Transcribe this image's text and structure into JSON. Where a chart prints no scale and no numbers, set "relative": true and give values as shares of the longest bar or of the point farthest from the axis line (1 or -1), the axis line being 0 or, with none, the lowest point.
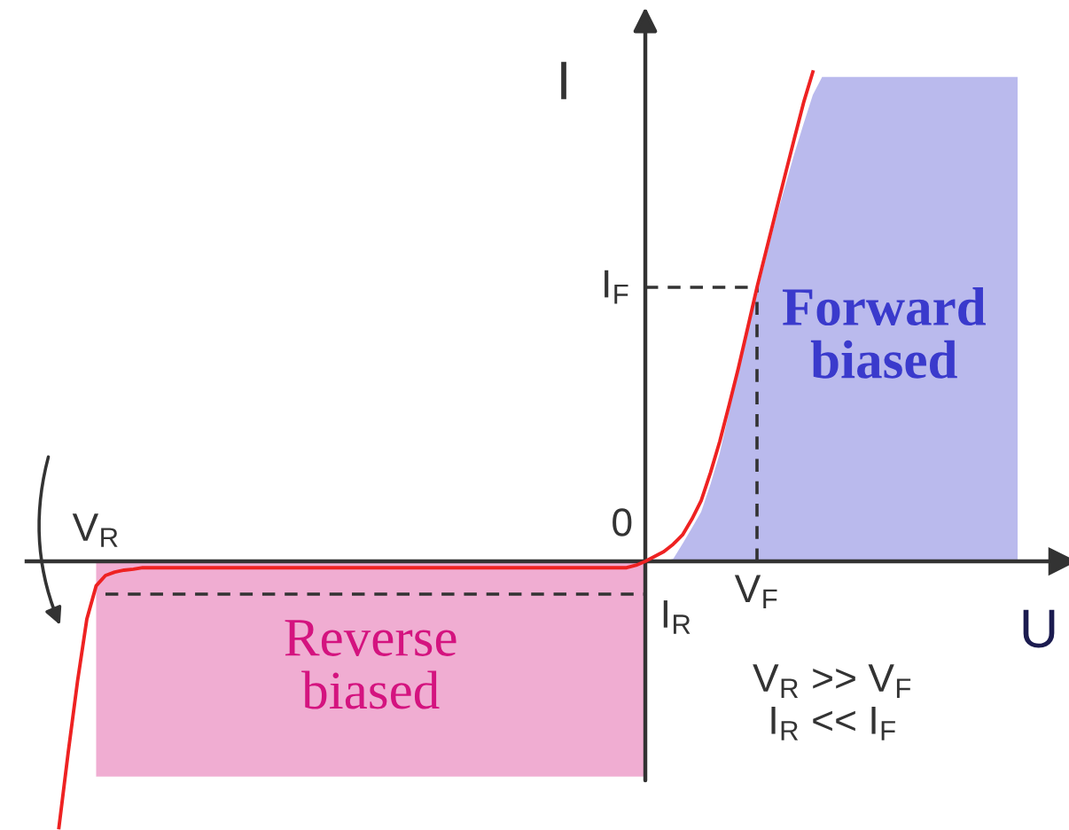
{
  "chart_data": {
    "type": "line",
    "relative": true,
    "xlabel": "U",
    "ylabel": "I",
    "categories": [
      null,
      null,
      null,
      null,
      "V$_{R}$",
      null,
      null,
      null,
      null,
      null,
      null,
      null,
      null,
      null,
      null,
      null,
      null,
      null,
      null,
      null,
      null,
      null,
      null,
      null,
      null,
      null,
      null,
      null,
      null,
      null,
      null,
      null,
      null,
      null,
      null,
      null,
      null,
      null,
      null,
      null,
      null,
      null,
      null,
      null,
      null,
      null,
      null,
      null,
      null,
      null,
      null,
      null,
      null,
      null,
      null,
      null,
      null,
      null,
      null,
      null,
      null,
      null,
      null,
      null,
      null,
      null,
      null,
      null,
      null,
      null,
      null,
      null,
      null,
      null,
      null,
      "V$_{F}$",
      null,
      null,
      null,
      null,
      null,
      null,
      null,
      null,
      null,
      null,
      null,
      null,
      null,
      null,
      null,
      null,
      null,
      null,
      null,
      null,
      null,
      null,
      null,
      null,
      null,
      null,
      null,
      null
    ],
    "series": [
      {
        "color": "#ee2222",
        "values": [
          -0.544,
          -0.39,
          -0.245,
          -0.118,
          -0.05,
          -0.029,
          -0.022,
          -0.018,
          -0.016,
          -0.013,
          -0.013,
          -0.013,
          -0.013,
          -0.013,
          -0.013,
          -0.013,
          -0.013,
          -0.013,
          -0.013,
          -0.013,
          -0.013,
          -0.013,
          -0.013,
          -0.013,
          -0.013,
          -0.013,
          -0.013,
          -0.013,
          -0.013,
          -0.013,
          -0.013,
          -0.013,
          -0.013,
          -0.013,
          -0.013,
          -0.013,
          -0.013,
          -0.013,
          -0.013,
          -0.013,
          -0.013,
          -0.013,
          -0.013,
          -0.013,
          -0.013,
          -0.013,
          -0.013,
          -0.013,
          -0.013,
          -0.013,
          -0.013,
          -0.013,
          -0.013,
          -0.013,
          -0.013,
          -0.013,
          -0.013,
          -0.013,
          -0.013,
          -0.013,
          -0.013,
          -0.013,
          -0.008,
          0,
          0.01,
          0.02,
          0.035,
          0.054,
          0.086,
          0.124,
          0.181,
          0.245,
          0.319,
          0.395,
          0.477,
          0.56,
          0.636,
          0.712,
          0.788,
          0.863,
          0.937,
          1.0,
          null,
          null,
          null,
          null,
          null,
          null,
          null,
          null,
          null,
          null,
          null,
          null,
          null,
          null,
          null,
          null,
          null,
          null,
          null,
          null,
          null,
          null
        ]
      },
      {
        "name": "I$_{F}$",
        "color": "#333333",
        "line_style": "dashed",
        "values": [
          null,
          null,
          null,
          null,
          null,
          null,
          null,
          null,
          null,
          null,
          null,
          null,
          null,
          null,
          null,
          null,
          null,
          null,
          null,
          null,
          null,
          null,
          null,
          null,
          null,
          null,
          null,
          null,
          null,
          null,
          null,
          null,
          null,
          null,
          null,
          null,
          null,
          null,
          null,
          null,
          null,
          null,
          null,
          null,
          null,
          null,
          null,
          null,
          null,
          null,
          null,
          null,
          null,
          null,
          null,
          null,
          null,
          null,
          null,
          null,
          null,
          null,
          null,
          0.56,
          0.56,
          0.56,
          0.56,
          0.56,
          0.56,
          0.56,
          0.56,
          0.56,
          0.56,
          0.56,
          0.56,
          0.56,
          null,
          null,
          null,
          null,
          null,
          null,
          null,
          null,
          null,
          null,
          null,
          null,
          null,
          null,
          null,
          null,
          null,
          null,
          null,
          null,
          null,
          null,
          null,
          null,
          null,
          null,
          null,
          null
        ]
      },
      {
        "name": "I$_{R}$",
        "color": "#333333",
        "line_style": "dashed",
        "values": [
          null,
          null,
          null,
          null,
          null,
          -0.067,
          -0.067,
          -0.067,
          -0.067,
          -0.067,
          -0.067,
          -0.067,
          -0.067,
          -0.067,
          -0.067,
          -0.067,
          -0.067,
          -0.067,
          -0.067,
          -0.067,
          -0.067,
          -0.067,
          -0.067,
          -0.067,
          -0.067,
          -0.067,
          -0.067,
          -0.067,
          -0.067,
          -0.067,
          -0.067,
          -0.067,
          -0.067,
          -0.067,
          -0.067,
          -0.067,
          -0.067,
          -0.067,
          -0.067,
          -0.067,
          -0.067,
          -0.067,
          -0.067,
          -0.067,
          -0.067,
          -0.067,
          -0.067,
          -0.067,
          -0.067,
          -0.067,
          -0.067,
          -0.067,
          -0.067,
          -0.067,
          -0.067,
          -0.067,
          -0.067,
          -0.067,
          -0.067,
          -0.067,
          -0.067,
          -0.067,
          -0.067,
          -0.067,
          null,
          null,
          null,
          null,
          null,
          null,
          null,
          null,
          null,
          null,
          null,
          null,
          null,
          null,
          null,
          null,
          null,
          null,
          null,
          null,
          null,
          null,
          null,
          null,
          null,
          null,
          null,
          null,
          null,
          null,
          null,
          null,
          null,
          null,
          null,
          null,
          null,
          null,
          null,
          null
        ]
      },
      {
        "type": "area",
        "name": "Forward\nbiased",
        "color": "#3a3acc",
        "values": [
          null,
          null,
          null,
          null,
          null,
          null,
          null,
          null,
          null,
          null,
          null,
          null,
          null,
          null,
          null,
          null,
          null,
          null,
          null,
          null,
          null,
          null,
          null,
          null,
          null,
          null,
          null,
          null,
          null,
          null,
          null,
          null,
          null,
          null,
          null,
          null,
          null,
          null,
          null,
          null,
          null,
          null,
          null,
          null,
          null,
          null,
          null,
          null,
          null,
          null,
          null,
          null,
          null,
          null,
          null,
          null,
          null,
          null,
          null,
          null,
          null,
          null,
          null,
          null,
          null,
          0,
          0.005,
          0.036,
          0.068,
          0.101,
          0.157,
          0.221,
          0.306,
          0.394,
          0.471,
          0.547,
          0.623,
          0.698,
          0.765,
          0.832,
          0.894,
          0.953,
          0.99,
          0.99,
          0.99,
          0.99,
          0.99,
          0.99,
          0.99,
          0.99,
          0.99,
          0.99,
          0.99,
          0.99,
          0.99,
          0.99,
          0.99,
          0.99,
          0.99,
          0.99,
          0.99,
          0.99,
          0.99,
          0.99
        ]
      },
      {
        "type": "area",
        "name": "Reverse\nbiased",
        "color": "#d4137f",
        "values": [
          null,
          null,
          null,
          null,
          -0.44,
          -0.44,
          -0.44,
          -0.44,
          -0.44,
          -0.44,
          -0.44,
          -0.44,
          -0.44,
          -0.44,
          -0.44,
          -0.44,
          -0.44,
          -0.44,
          -0.44,
          -0.44,
          -0.44,
          -0.44,
          -0.44,
          -0.44,
          -0.44,
          -0.44,
          -0.44,
          -0.44,
          -0.44,
          -0.44,
          -0.44,
          -0.44,
          -0.44,
          -0.44,
          -0.44,
          -0.44,
          -0.44,
          -0.44,
          -0.44,
          -0.44,
          -0.44,
          -0.44,
          -0.44,
          -0.44,
          -0.44,
          -0.44,
          -0.44,
          -0.44,
          -0.44,
          -0.44,
          -0.44,
          -0.44,
          -0.44,
          -0.44,
          -0.44,
          -0.44,
          -0.44,
          -0.44,
          -0.44,
          -0.44,
          -0.44,
          -0.44,
          -0.44,
          -0.44,
          null,
          null,
          null,
          null,
          null,
          null,
          null,
          null,
          null,
          null,
          null,
          null,
          null,
          null,
          null,
          null,
          null,
          null,
          null,
          null,
          null,
          null,
          null,
          null,
          null,
          null,
          null,
          null,
          null,
          null,
          null,
          null,
          null,
          null,
          null,
          null,
          null,
          null,
          null,
          null
        ]
      }
    ],
    "ref_lines": [
      {
        "axis": "x",
        "value": "V$_{F}$",
        "line_style": "dashed"
      }
    ],
    "annotations": [
      {
        "text": "0",
        "y": 0
      },
      "V$_{R}$ >> V$_{F}$",
      "I$_{R}$ << I$_{F}$"
    ]
  }
}
